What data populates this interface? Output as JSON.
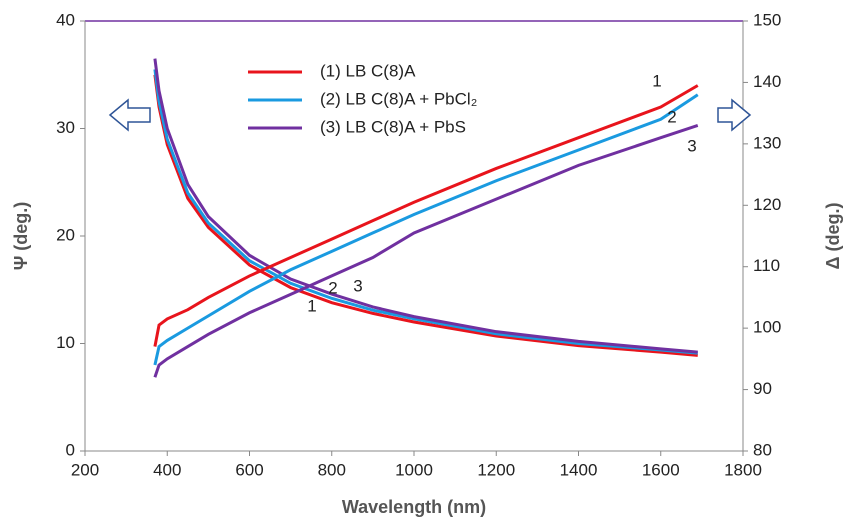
{
  "chart_data": {
    "type": "line",
    "x": [
      370,
      380,
      400,
      450,
      500,
      600,
      700,
      800,
      900,
      1000,
      1200,
      1400,
      1600,
      1690
    ],
    "series": [
      {
        "name": "(1) LB C(8)A",
        "color": "#e8141c",
        "values": [
          35,
          32,
          28.5,
          23.5,
          20.8,
          17.3,
          15.2,
          13.8,
          12.8,
          12.0,
          10.7,
          9.8,
          9.2,
          8.9
        ]
      },
      {
        "name": "(2) LB C(8)A + PbCl₂",
        "color": "#1a9ae0",
        "values": [
          35.5,
          32.5,
          29,
          24,
          21.2,
          17.7,
          15.6,
          14.2,
          13.1,
          12.3,
          10.9,
          10.0,
          9.4,
          9.1
        ]
      },
      {
        "name": "(3) LB C(8)A + PbS",
        "color": "#7030a0",
        "values": [
          36.5,
          33.5,
          30,
          24.8,
          21.8,
          18.2,
          16.0,
          14.6,
          13.4,
          12.5,
          11.1,
          10.2,
          9.5,
          9.2
        ]
      },
      {
        "color": "#e8141c",
        "axis": "y2",
        "values": [
          97,
          100.5,
          101.5,
          103,
          105,
          108.5,
          111.5,
          114.5,
          117.5,
          120.5,
          126,
          131,
          136,
          139.5
        ]
      },
      {
        "color": "#1a9ae0",
        "axis": "y2",
        "values": [
          94,
          97,
          98,
          100,
          102,
          106,
          109.5,
          112.5,
          115.5,
          118.5,
          124,
          129,
          134,
          138
        ]
      },
      {
        "color": "#7030a0",
        "axis": "y2",
        "values": [
          92,
          94,
          95,
          97,
          99,
          102.5,
          105.5,
          108.5,
          111.5,
          115.5,
          121,
          126.5,
          131,
          133
        ]
      }
    ],
    "x_label": "Wavelength (nm)",
    "y_label": "Ψ (deg.)",
    "y2_label": "Δ (deg.)",
    "xlim": [
      200,
      1800
    ],
    "xticks": [
      200,
      400,
      600,
      800,
      1000,
      1200,
      1400,
      1600,
      1800
    ],
    "ylim": [
      0,
      40
    ],
    "yticks": [
      0,
      10,
      20,
      30,
      40
    ],
    "y2lim": [
      80,
      150
    ],
    "y2ticks": [
      80,
      90,
      100,
      110,
      120,
      130,
      140,
      150
    ],
    "annotations": [
      "1",
      "2",
      "3",
      "1",
      "2",
      "3"
    ]
  }
}
